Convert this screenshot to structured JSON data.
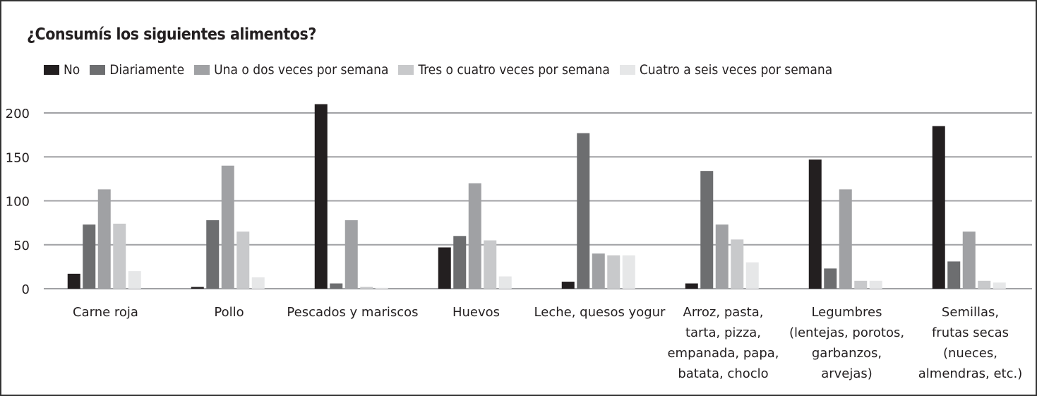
{
  "chart_data": {
    "type": "bar",
    "title": "¿Consumís los siguientes alimentos?",
    "xlabel": "",
    "ylabel": "",
    "ylim": [
      0,
      200
    ],
    "yticks": [
      0,
      50,
      100,
      150,
      200
    ],
    "grid": true,
    "legend_position": "top-left",
    "categories": [
      [
        "Carne roja"
      ],
      [
        "Pollo"
      ],
      [
        "Pescados y mariscos"
      ],
      [
        "Huevos"
      ],
      [
        "Leche, quesos yogur"
      ],
      [
        "Arroz, pasta,",
        "tarta, pizza,",
        "empanada, papa,",
        "batata, choclo"
      ],
      [
        "Legumbres",
        "(lentejas, porotos,",
        "garbanzos,",
        "arvejas)"
      ],
      [
        "Semillas,",
        "frutas secas",
        "(nueces,",
        "almendras, etc.)"
      ]
    ],
    "series": [
      {
        "name": "No",
        "color": "#231f20",
        "values": [
          17,
          2,
          210,
          47,
          8,
          6,
          147,
          185
        ]
      },
      {
        "name": "Diariamente",
        "color": "#6d6e70",
        "values": [
          73,
          78,
          6,
          60,
          177,
          134,
          23,
          31
        ]
      },
      {
        "name": "Una o dos veces por semana",
        "color": "#a0a1a4",
        "values": [
          113,
          140,
          78,
          120,
          40,
          73,
          113,
          65
        ]
      },
      {
        "name": "Tres o cuatro veces por semana",
        "color": "#c8c9cb",
        "values": [
          74,
          65,
          2,
          55,
          38,
          56,
          9,
          9
        ]
      },
      {
        "name": "Cuatro a seis veces por semana",
        "color": "#e6e7e8",
        "values": [
          20,
          13,
          1,
          14,
          38,
          30,
          9,
          7
        ]
      }
    ]
  }
}
